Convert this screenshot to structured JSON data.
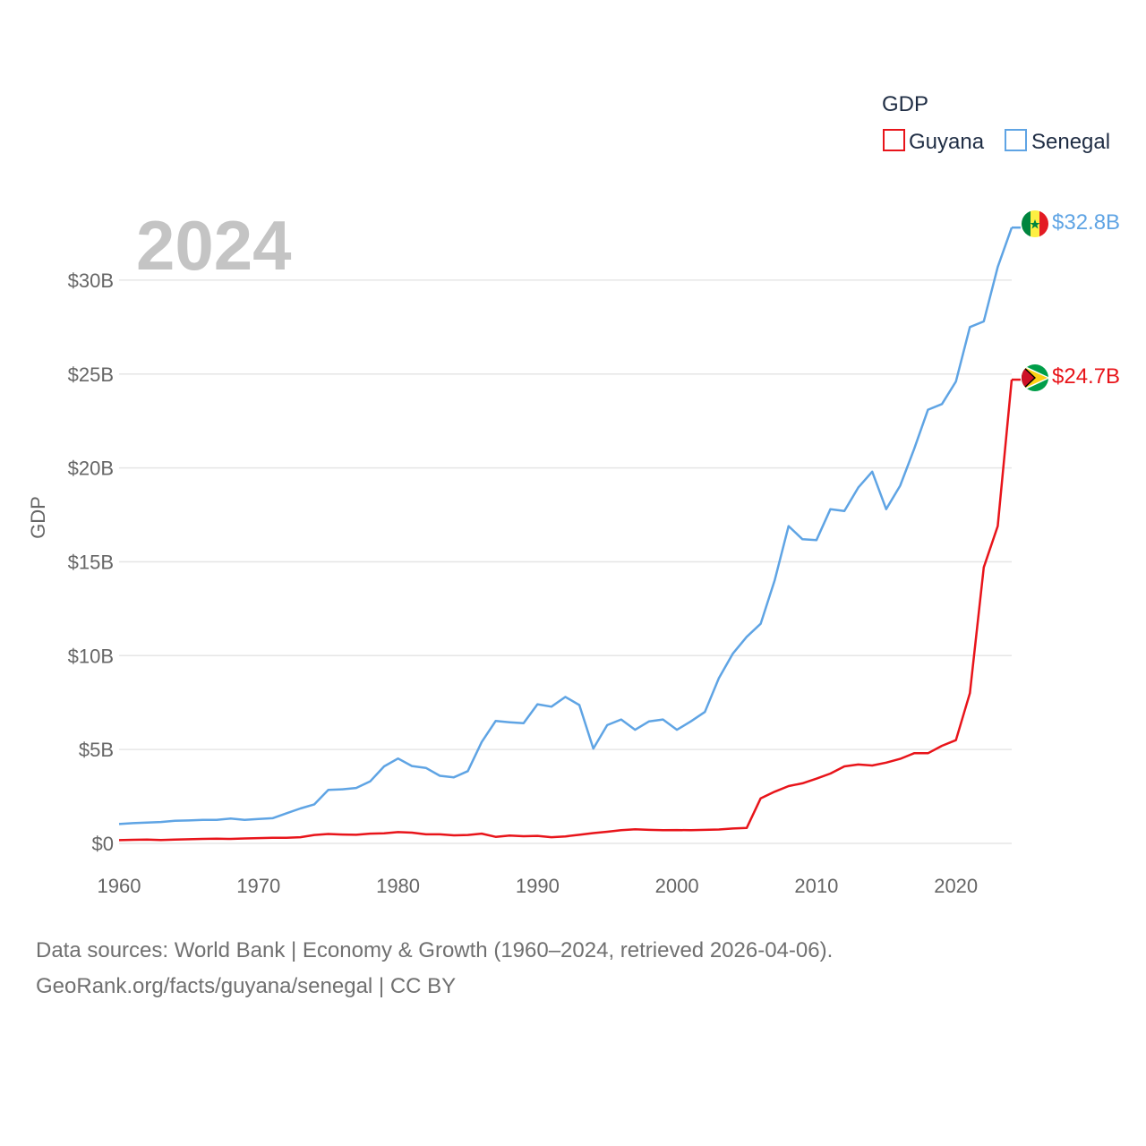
{
  "chart_data": {
    "type": "line",
    "title": "",
    "year_label": "2024",
    "ylabel": "GDP",
    "xlabel": "",
    "xlim": [
      1960,
      2024
    ],
    "ylim": [
      0,
      33
    ],
    "x_ticks": [
      1960,
      1970,
      1980,
      1990,
      2000,
      2010,
      2020
    ],
    "y_ticks": [
      0,
      5,
      10,
      15,
      20,
      25,
      30
    ],
    "y_tick_labels": [
      "$0",
      "$5B",
      "$10B",
      "$15B",
      "$20B",
      "$25B",
      "$30B"
    ],
    "grid": true,
    "legend": {
      "title": "GDP",
      "position": "top-right",
      "entries": [
        {
          "name": "Guyana",
          "color": "#e8141a"
        },
        {
          "name": "Senegal",
          "color": "#5fa4e4"
        }
      ]
    },
    "x": [
      1960,
      1961,
      1962,
      1963,
      1964,
      1965,
      1966,
      1967,
      1968,
      1969,
      1970,
      1971,
      1972,
      1973,
      1974,
      1975,
      1976,
      1977,
      1978,
      1979,
      1980,
      1981,
      1982,
      1983,
      1984,
      1985,
      1986,
      1987,
      1988,
      1989,
      1990,
      1991,
      1992,
      1993,
      1994,
      1995,
      1996,
      1997,
      1998,
      1999,
      2000,
      2001,
      2002,
      2003,
      2004,
      2005,
      2006,
      2007,
      2008,
      2009,
      2010,
      2011,
      2012,
      2013,
      2014,
      2015,
      2016,
      2017,
      2018,
      2019,
      2020,
      2021,
      2022,
      2023,
      2024
    ],
    "series": [
      {
        "name": "Senegal",
        "color": "#5fa4e4",
        "end_label": "$32.8B",
        "values": [
          1.03,
          1.08,
          1.11,
          1.14,
          1.2,
          1.22,
          1.25,
          1.25,
          1.32,
          1.25,
          1.3,
          1.34,
          1.6,
          1.86,
          2.08,
          2.85,
          2.88,
          2.95,
          3.3,
          4.1,
          4.52,
          4.12,
          4.02,
          3.6,
          3.52,
          3.85,
          5.4,
          6.52,
          6.45,
          6.4,
          7.41,
          7.28,
          7.8,
          7.37,
          5.05,
          6.3,
          6.6,
          6.05,
          6.5,
          6.6,
          6.05,
          6.5,
          7.0,
          8.8,
          10.1,
          11.0,
          11.7,
          14.0,
          16.9,
          16.2,
          16.15,
          17.8,
          17.7,
          18.95,
          19.8,
          17.8,
          19.05,
          21.0,
          23.1,
          23.4,
          24.6,
          27.5,
          27.8,
          30.7,
          32.8
        ]
      },
      {
        "name": "Guyana",
        "color": "#e8141a",
        "end_label": "$24.7B",
        "values": [
          0.17,
          0.19,
          0.2,
          0.18,
          0.2,
          0.22,
          0.24,
          0.25,
          0.24,
          0.26,
          0.28,
          0.3,
          0.3,
          0.33,
          0.45,
          0.5,
          0.47,
          0.46,
          0.52,
          0.54,
          0.6,
          0.57,
          0.48,
          0.48,
          0.43,
          0.45,
          0.52,
          0.35,
          0.42,
          0.38,
          0.4,
          0.33,
          0.37,
          0.46,
          0.55,
          0.62,
          0.7,
          0.75,
          0.72,
          0.7,
          0.71,
          0.7,
          0.72,
          0.74,
          0.79,
          0.82,
          2.4,
          2.75,
          3.05,
          3.2,
          3.45,
          3.72,
          4.1,
          4.2,
          4.15,
          4.3,
          4.5,
          4.8,
          4.8,
          5.2,
          5.5,
          8.0,
          14.7,
          16.9,
          24.7
        ]
      }
    ]
  },
  "footer": {
    "line1": "Data sources: World Bank | Economy & Growth (1960–2024, retrieved 2026-04-06).",
    "line2": "GeoRank.org/facts/guyana/senegal | CC BY"
  }
}
